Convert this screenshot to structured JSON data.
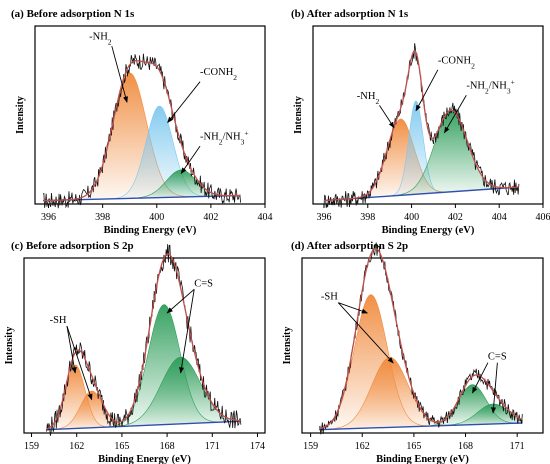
{
  "figure": {
    "panels": [
      {
        "id": "a",
        "title": "(a) Before adsorption N 1s"
      },
      {
        "id": "b",
        "title": "(b) After adsorption N 1s"
      },
      {
        "id": "c",
        "title": "(c) Before adsorption S 2p"
      },
      {
        "id": "d",
        "title": "(d) After adsorption S 2p"
      }
    ]
  },
  "colors": {
    "orange": "#f08a3c",
    "blue": "#7ec8ef",
    "green": "#2e9d5a",
    "envelope": "#c0504d",
    "raw": "#111111",
    "background": "#2f4fb0",
    "axis": "#000000"
  },
  "chart_data": [
    {
      "id": "a",
      "type": "line",
      "title": "(a) Before adsorption N 1s",
      "xlabel": "Binding Energy (eV)",
      "ylabel": "Intensity",
      "xlim": [
        395.5,
        404
      ],
      "xticks": [
        396,
        398,
        400,
        402,
        404
      ],
      "ylim": [
        0,
        1.05
      ],
      "baseline": {
        "x0": 395.8,
        "x1": 403.0,
        "y0": 0.02,
        "y1": 0.05
      },
      "raw_range": [
        395.8,
        403.1
      ],
      "raw_noise": 0.05,
      "peaks": [
        {
          "name": "-NH2",
          "center": 399.0,
          "height": 0.74,
          "sigma": 0.62,
          "color": "orange"
        },
        {
          "name": "-CONH2",
          "center": 400.1,
          "height": 0.54,
          "sigma": 0.5,
          "color": "blue"
        },
        {
          "name": "-NH2/NH3+",
          "center": 400.9,
          "height": 0.16,
          "sigma": 0.55,
          "color": "green"
        }
      ],
      "annotations": [
        {
          "label": "-NH",
          "sub": "2",
          "sup": "",
          "x": 397.5,
          "y": 0.97,
          "target": [
            398.9,
            0.6
          ]
        },
        {
          "label": "-CONH",
          "sub": "2",
          "sup": "",
          "x": 401.6,
          "y": 0.76,
          "target": [
            400.4,
            0.48
          ]
        },
        {
          "label": "-NH",
          "sub": "2",
          "mid": "/NH",
          "sub2": "3",
          "sup": "+",
          "x": 401.6,
          "y": 0.38,
          "target": [
            400.9,
            0.18
          ]
        }
      ]
    },
    {
      "id": "b",
      "type": "line",
      "title": "(b) After adsorption N 1s",
      "xlabel": "Binding Energy (eV)",
      "ylabel": "Intensity",
      "xlim": [
        395.5,
        406
      ],
      "xticks": [
        396,
        398,
        400,
        402,
        404,
        406
      ],
      "ylim": [
        0,
        1.05
      ],
      "baseline": {
        "x0": 396.0,
        "x1": 404.9,
        "y0": 0.02,
        "y1": 0.1
      },
      "raw_range": [
        396.0,
        404.9
      ],
      "raw_noise": 0.05,
      "peaks": [
        {
          "name": "-NH2",
          "center": 399.5,
          "height": 0.45,
          "sigma": 0.62,
          "color": "orange"
        },
        {
          "name": "-CONH2",
          "center": 400.2,
          "height": 0.55,
          "sigma": 0.33,
          "color": "blue"
        },
        {
          "name": "-NH2/NH3+",
          "center": 401.8,
          "height": 0.48,
          "sigma": 0.75,
          "color": "green"
        }
      ],
      "annotations": [
        {
          "label": "-NH",
          "sub": "2",
          "sup": "",
          "x": 397.5,
          "y": 0.62,
          "target": [
            399.2,
            0.45
          ]
        },
        {
          "label": "-CONH",
          "sub": "2",
          "sup": "",
          "x": 401.2,
          "y": 0.83,
          "target": [
            400.2,
            0.55
          ]
        },
        {
          "label": "-NH",
          "sub": "2",
          "mid": "/NH",
          "sub2": "3",
          "sup": "+",
          "x": 402.5,
          "y": 0.68,
          "target": [
            401.5,
            0.42
          ]
        }
      ]
    },
    {
      "id": "c",
      "type": "line",
      "title": "(c) Before adsorption S 2p",
      "xlabel": "Binding Energy (eV)",
      "ylabel": "Intensity",
      "xlim": [
        158.5,
        174.5
      ],
      "xticks": [
        159,
        162,
        165,
        168,
        171,
        174
      ],
      "ylim": [
        0,
        1.05
      ],
      "baseline": {
        "x0": 160.0,
        "x1": 172.8,
        "y0": 0.02,
        "y1": 0.07
      },
      "raw_range": [
        160.0,
        172.9
      ],
      "raw_noise": 0.06,
      "peaks": [
        {
          "name": "-SH",
          "center": 161.9,
          "height": 0.38,
          "sigma": 0.65,
          "color": "orange"
        },
        {
          "name": "-SH",
          "center": 163.0,
          "height": 0.22,
          "sigma": 0.75,
          "color": "orange"
        },
        {
          "name": "C=S",
          "center": 167.8,
          "height": 0.72,
          "sigma": 1.05,
          "color": "green"
        },
        {
          "name": "C=S",
          "center": 168.9,
          "height": 0.4,
          "sigma": 1.3,
          "color": "green"
        }
      ],
      "annotations": [
        {
          "label": "-SH",
          "sub": "",
          "sup": "",
          "x": 160.2,
          "y": 0.66,
          "targets": [
            [
              161.9,
              0.36
            ],
            [
              163.0,
              0.2
            ]
          ]
        },
        {
          "label": "C=S",
          "sub": "",
          "sup": "",
          "x": 169.8,
          "y": 0.88,
          "targets": [
            [
              168.0,
              0.72
            ],
            [
              168.9,
              0.36
            ]
          ]
        }
      ]
    },
    {
      "id": "d",
      "type": "line",
      "title": "(d) After adsorption S 2p",
      "xlabel": "Binding Energy (eV)",
      "ylabel": "Intensity",
      "xlim": [
        158.5,
        172.5
      ],
      "xticks": [
        159,
        162,
        165,
        168,
        171
      ],
      "ylim": [
        0,
        1.05
      ],
      "baseline": {
        "x0": 159.5,
        "x1": 171.3,
        "y0": 0.02,
        "y1": 0.06
      },
      "raw_range": [
        159.5,
        171.3
      ],
      "raw_noise": 0.04,
      "peaks": [
        {
          "name": "-SH",
          "center": 162.5,
          "height": 0.8,
          "sigma": 0.95,
          "color": "orange"
        },
        {
          "name": "-SH",
          "center": 163.6,
          "height": 0.42,
          "sigma": 1.05,
          "color": "orange"
        },
        {
          "name": "C=S",
          "center": 168.4,
          "height": 0.24,
          "sigma": 0.8,
          "color": "green"
        },
        {
          "name": "C=S",
          "center": 169.6,
          "height": 0.12,
          "sigma": 0.9,
          "color": "green"
        }
      ],
      "annotations": [
        {
          "label": "-SH",
          "sub": "",
          "sup": "",
          "x": 159.6,
          "y": 0.8,
          "targets": [
            [
              162.3,
              0.72
            ],
            [
              163.8,
              0.42
            ]
          ]
        },
        {
          "label": "C=S",
          "sub": "",
          "sup": "",
          "x": 169.3,
          "y": 0.44,
          "targets": [
            [
              168.4,
              0.24
            ],
            [
              169.6,
              0.12
            ]
          ]
        }
      ]
    }
  ]
}
